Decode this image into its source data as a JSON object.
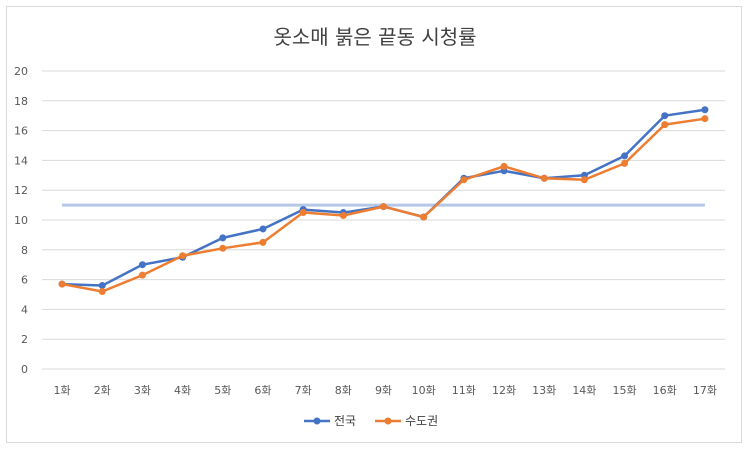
{
  "chart_data": {
    "type": "line",
    "title": "옷소매 붉은 끝동 시청률",
    "xlabel": "",
    "ylabel": "",
    "categories": [
      "1화",
      "2화",
      "3화",
      "4화",
      "5화",
      "6화",
      "7화",
      "8화",
      "9화",
      "10화",
      "11화",
      "12화",
      "13화",
      "14화",
      "15화",
      "16화",
      "17화"
    ],
    "ylim": [
      0,
      20
    ],
    "yticks": [
      "0",
      "2",
      "4",
      "6",
      "8",
      "10",
      "12",
      "14",
      "16",
      "18",
      "20"
    ],
    "grid": "horizontal",
    "legend_position": "bottom",
    "series": [
      {
        "name": "전국",
        "color": "#4472c4",
        "values": [
          5.7,
          5.6,
          7.0,
          7.5,
          8.8,
          9.4,
          10.7,
          10.5,
          10.9,
          10.2,
          12.8,
          13.3,
          12.8,
          13.0,
          14.3,
          17.0,
          17.4
        ]
      },
      {
        "name": "수도권",
        "color": "#ed7d31",
        "values": [
          5.7,
          5.2,
          6.3,
          7.6,
          8.1,
          8.5,
          10.5,
          10.3,
          10.9,
          10.2,
          12.7,
          13.6,
          12.8,
          12.7,
          13.8,
          16.4,
          16.8
        ]
      }
    ],
    "reference_line": {
      "value": 11,
      "color": "#b4c7e7"
    }
  }
}
